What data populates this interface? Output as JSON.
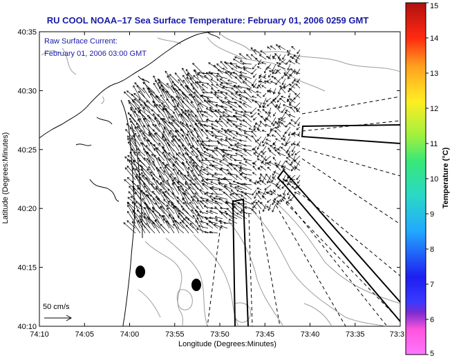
{
  "title": "RU COOL  NOAA–17  Sea Surface Temperature:  February 01, 2006 0259 GMT",
  "legend_box": {
    "line1": "Raw Surface Current:",
    "line2": "February 01, 2006 03:00 GMT"
  },
  "scale_bar": {
    "label": "50 cm/s"
  },
  "axes": {
    "ylabel": "Latitude (Degrees:Minutes)",
    "xlabel": "Longitude (Degrees:Minutes)",
    "lat_ticks": [
      "40:35",
      "40:30",
      "40:25",
      "40:20",
      "40:15",
      "40:10"
    ],
    "lon_ticks": [
      "74:10",
      "74:05",
      "74:00",
      "73:55",
      "73:50",
      "73:45",
      "73:40",
      "73:35",
      "73:3"
    ]
  },
  "colorbar": {
    "label": "Temperature (°C)",
    "ticks": [
      "15",
      "14",
      "13",
      "12",
      "11",
      "10",
      "9",
      "8",
      "7",
      "6",
      "5"
    ],
    "min": 5,
    "max": 15
  },
  "colors": {
    "title": "#1a1aa6",
    "legend_text": "#1a1aa6",
    "contour": "#9a9a9a"
  }
}
